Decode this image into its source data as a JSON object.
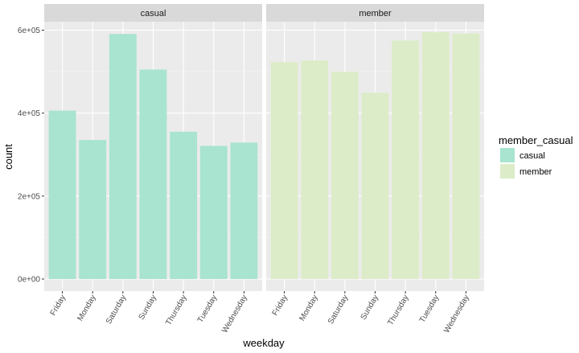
{
  "chart_data": {
    "type": "bar",
    "facet_by": "member_casual",
    "facets": [
      {
        "label": "casual",
        "color": "#a8e4d0",
        "categories": [
          "Friday",
          "Monday",
          "Saturday",
          "Sunday",
          "Thursday",
          "Tuesday",
          "Wednesday"
        ],
        "values": [
          406000,
          335000,
          591000,
          505000,
          355000,
          321000,
          329000
        ]
      },
      {
        "label": "member",
        "color": "#ddecc8",
        "categories": [
          "Friday",
          "Monday",
          "Saturday",
          "Sunday",
          "Thursday",
          "Tuesday",
          "Wednesday"
        ],
        "values": [
          523000,
          527000,
          500000,
          449000,
          575000,
          595000,
          592000
        ]
      }
    ],
    "xlabel": "weekday",
    "ylabel": "count",
    "ylim": [
      0,
      600000
    ],
    "yticks": [
      0,
      200000,
      400000,
      600000
    ],
    "ytick_labels": [
      "0e+00",
      "2e+05",
      "4e+05",
      "6e+05"
    ],
    "legend": {
      "title": "member_casual",
      "position": "right",
      "entries": [
        {
          "label": "casual",
          "color": "#a8e4d0"
        },
        {
          "label": "member",
          "color": "#ddecc8"
        }
      ]
    },
    "grid": true,
    "panel_background": "#ebebeb",
    "strip_background": "#d9d9d9"
  }
}
